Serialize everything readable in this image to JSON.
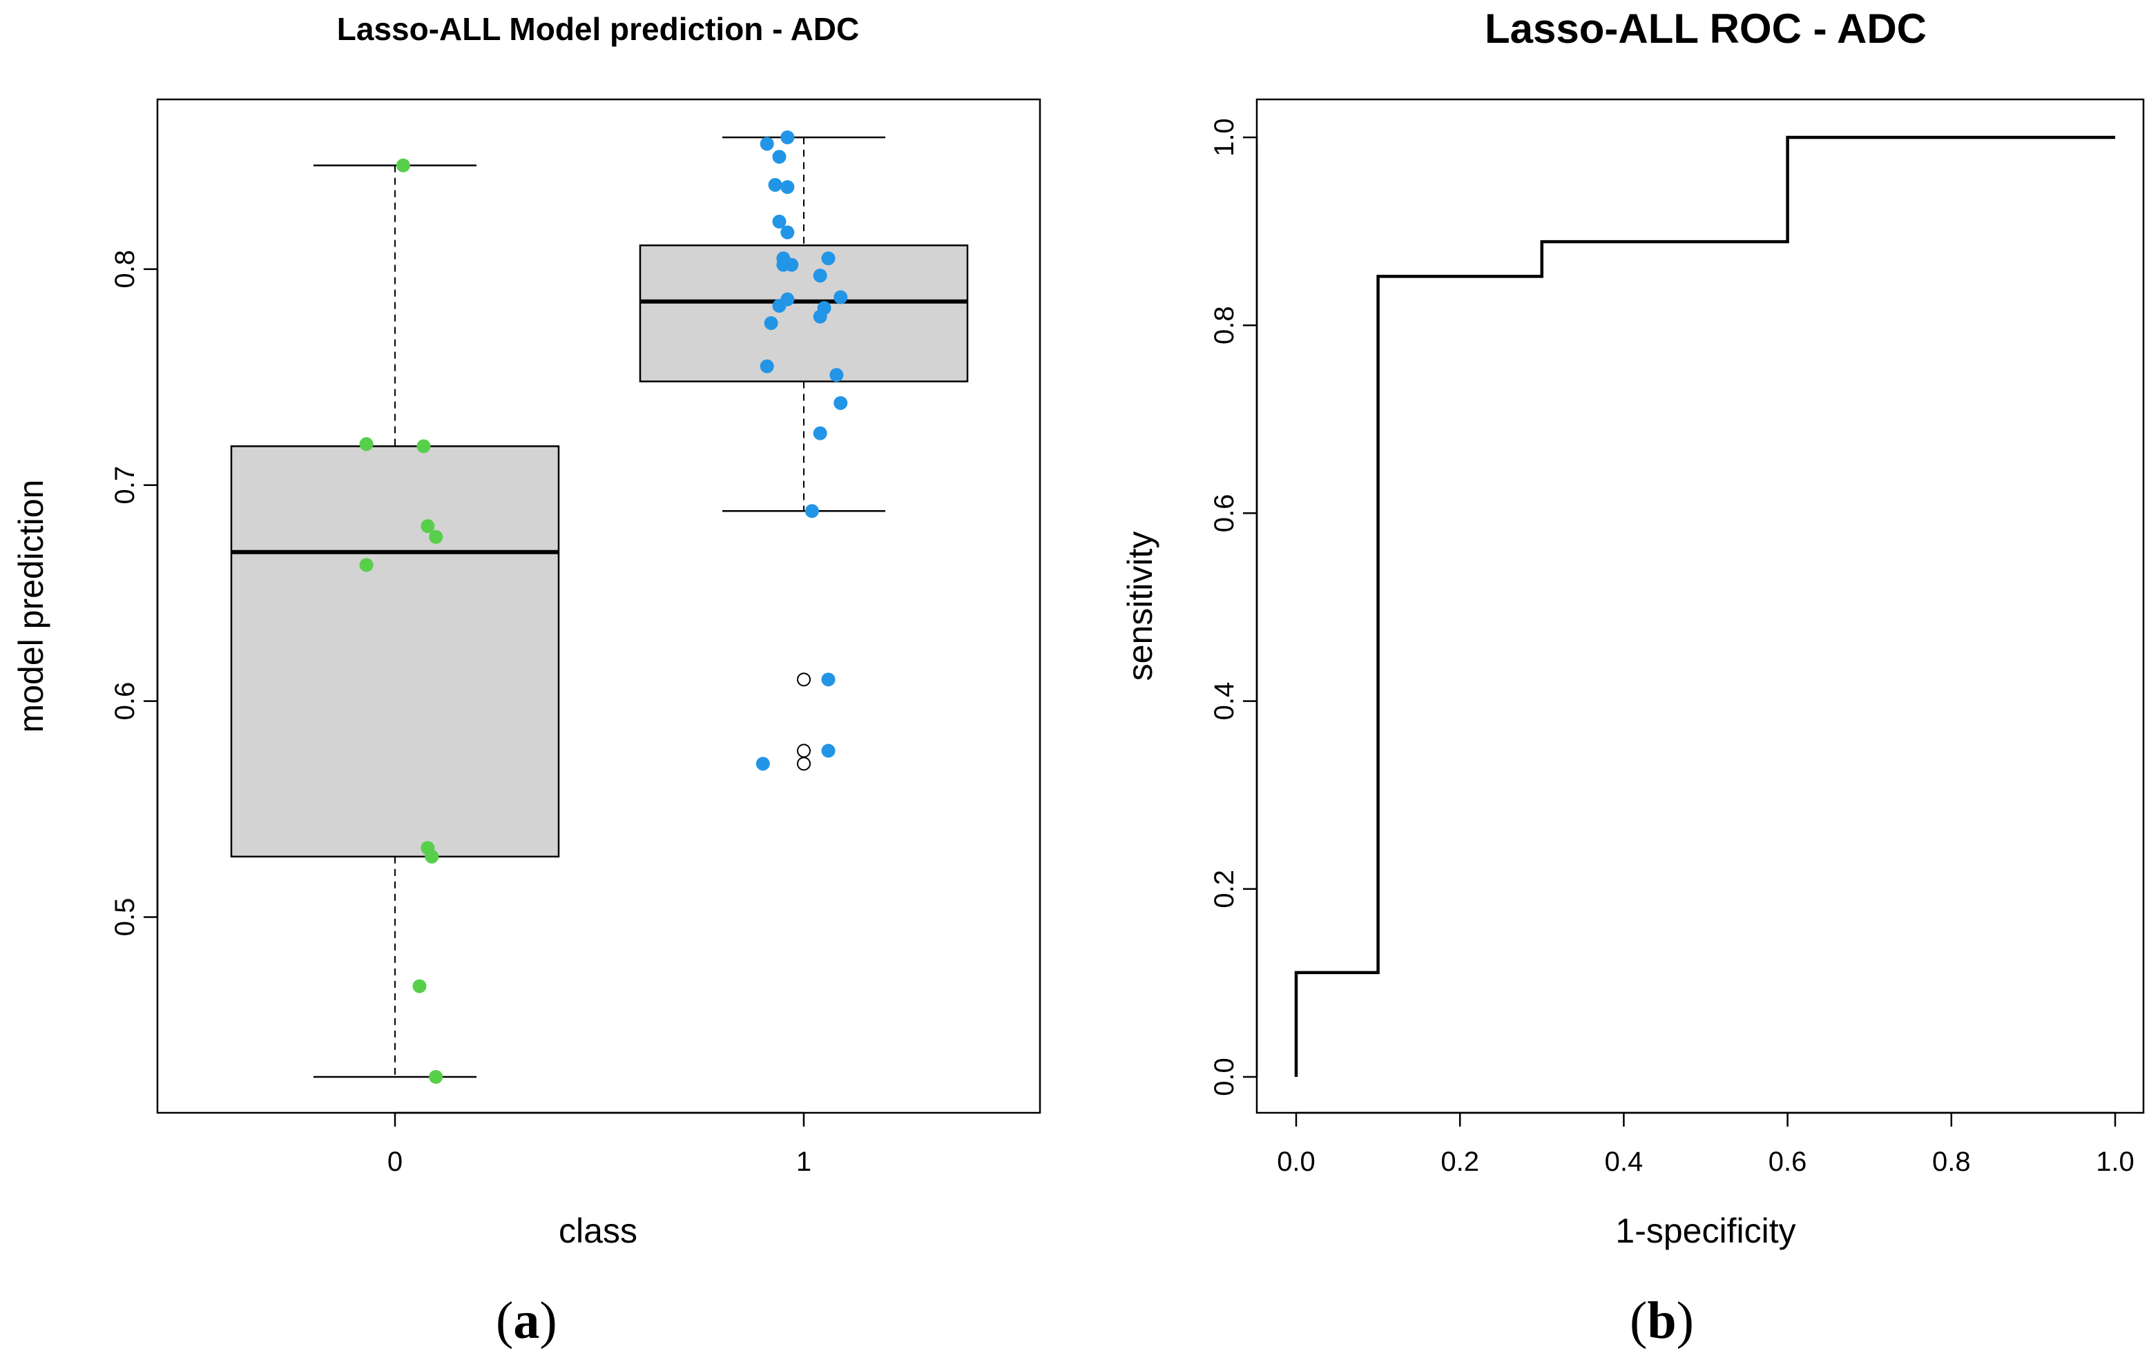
{
  "chart_data": [
    {
      "type": "box",
      "panel_label": "a",
      "title": "Lasso-ALL Model prediction - ADC",
      "xlabel": "class",
      "ylabel": "model prediction",
      "categories": [
        "0",
        "1"
      ],
      "ylim": [
        0.41,
        0.88
      ],
      "yticks": [
        0.5,
        0.6,
        0.7,
        0.8
      ],
      "ytick_labels": [
        "0.5",
        "0.6",
        "0.7",
        "0.8"
      ],
      "boxes": [
        {
          "category": "0",
          "whisker_low": 0.426,
          "q1": 0.528,
          "median": 0.669,
          "q3": 0.718,
          "whisker_high": 0.848,
          "outliers": []
        },
        {
          "category": "1",
          "whisker_low": 0.688,
          "q1": 0.748,
          "median": 0.785,
          "q3": 0.811,
          "whisker_high": 0.861,
          "outliers": [
            0.61,
            0.577,
            0.571
          ]
        }
      ],
      "points": [
        {
          "category": "0",
          "color": "#58cf4a",
          "x_jitter": [
            0.02,
            -0.07,
            0.07,
            0.08,
            0.1,
            -0.07,
            0.08,
            0.09,
            0.06,
            0.1
          ],
          "values": [
            0.848,
            0.719,
            0.718,
            0.681,
            0.676,
            0.663,
            0.532,
            0.528,
            0.468,
            0.426
          ]
        },
        {
          "category": "1",
          "color": "#2295e6",
          "x_jitter": [
            -0.04,
            -0.09,
            -0.06,
            -0.07,
            -0.04,
            -0.06,
            -0.04,
            -0.05,
            0.06,
            -0.05,
            -0.03,
            0.04,
            0.09,
            -0.04,
            0.05,
            -0.06,
            0.04,
            -0.08,
            0.08,
            -0.09,
            0.09,
            0.04,
            0.02,
            0.06,
            -0.1,
            0.06
          ],
          "values": [
            0.861,
            0.858,
            0.852,
            0.839,
            0.838,
            0.822,
            0.817,
            0.805,
            0.805,
            0.802,
            0.802,
            0.797,
            0.787,
            0.786,
            0.782,
            0.783,
            0.778,
            0.775,
            0.751,
            0.755,
            0.738,
            0.724,
            0.688,
            0.61,
            0.571,
            0.577
          ]
        }
      ]
    },
    {
      "type": "line",
      "panel_label": "b",
      "title": "Lasso-ALL ROC - ADC",
      "xlabel": "1-specificity",
      "ylabel": "sensitivity",
      "xlim": [
        0.0,
        1.0
      ],
      "ylim": [
        0.0,
        1.0
      ],
      "xticks": [
        0.0,
        0.2,
        0.4,
        0.6,
        0.8,
        1.0
      ],
      "xtick_labels": [
        "0.0",
        "0.2",
        "0.4",
        "0.6",
        "0.8",
        "1.0"
      ],
      "yticks": [
        0.0,
        0.2,
        0.4,
        0.6,
        0.8,
        1.0
      ],
      "ytick_labels": [
        "0.0",
        "0.2",
        "0.4",
        "0.6",
        "0.8",
        "1.0"
      ],
      "series": [
        {
          "name": "ROC",
          "x": [
            0.0,
            0.0,
            0.1,
            0.1,
            0.3,
            0.3,
            0.6,
            0.6,
            1.0
          ],
          "y": [
            0.0,
            0.111,
            0.111,
            0.852,
            0.852,
            0.889,
            0.889,
            1.0,
            1.0
          ]
        }
      ]
    }
  ],
  "colors": {
    "box_fill": "#d3d3d3",
    "class0_points": "#58cf4a",
    "class1_points": "#2295e6",
    "line": "#000000"
  },
  "captions": {
    "a": "a",
    "b": "b"
  }
}
